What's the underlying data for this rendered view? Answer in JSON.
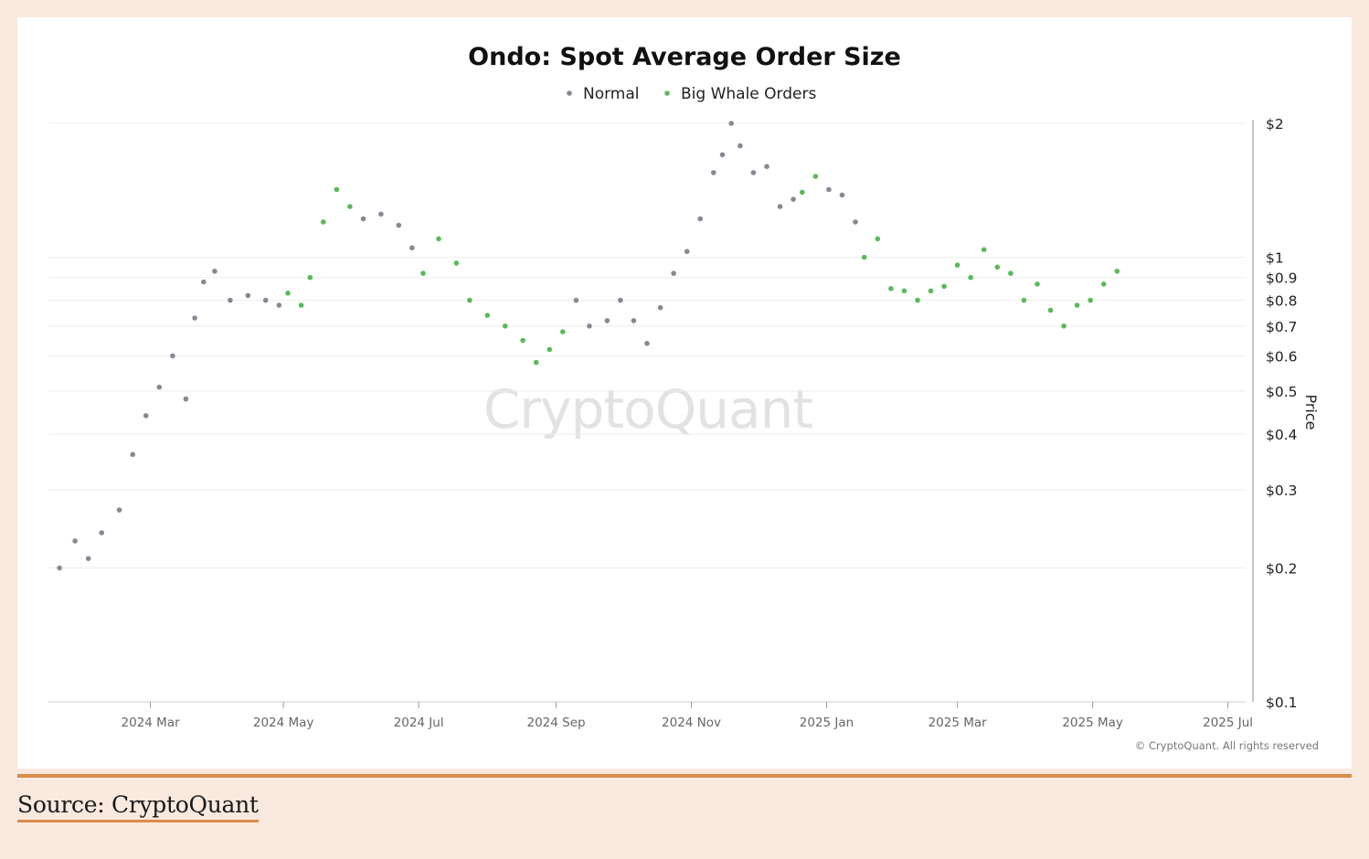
{
  "source": {
    "label": "Source: CryptoQuant"
  },
  "chart_data": {
    "type": "scatter",
    "title": "Ondo: Spot Average Order Size",
    "ylabel": "Price",
    "yscale": "log",
    "ylim": [
      0.1,
      2
    ],
    "watermark": "CryptoQuant",
    "credit": "© CryptoQuant. All rights reserved",
    "colors": {
      "normal": "#8a8794",
      "whale": "#5cb85c"
    },
    "legend": [
      {
        "name": "Normal",
        "key": "normal",
        "color": "#8a8794"
      },
      {
        "name": "Big Whale Orders",
        "key": "whale",
        "color": "#5cb85c"
      }
    ],
    "x_range": [
      0,
      540
    ],
    "x_ticks": [
      {
        "label": "2024 Mar",
        "day": 46
      },
      {
        "label": "2024 May",
        "day": 106
      },
      {
        "label": "2024 Jul",
        "day": 167
      },
      {
        "label": "2024 Sep",
        "day": 229
      },
      {
        "label": "2024 Nov",
        "day": 290
      },
      {
        "label": "2025 Jan",
        "day": 351
      },
      {
        "label": "2025 Mar",
        "day": 410
      },
      {
        "label": "2025 May",
        "day": 471
      },
      {
        "label": "2025 Jul",
        "day": 532
      }
    ],
    "y_ticks": [
      {
        "label": "$2",
        "value": 2
      },
      {
        "label": "$1",
        "value": 1
      },
      {
        "label": "$0.9",
        "value": 0.9
      },
      {
        "label": "$0.8",
        "value": 0.8
      },
      {
        "label": "$0.7",
        "value": 0.7
      },
      {
        "label": "$0.6",
        "value": 0.6
      },
      {
        "label": "$0.5",
        "value": 0.5
      },
      {
        "label": "$0.4",
        "value": 0.4
      },
      {
        "label": "$0.3",
        "value": 0.3
      },
      {
        "label": "$0.2",
        "value": 0.2
      },
      {
        "label": "$0.1",
        "value": 0.1
      }
    ],
    "series": [
      {
        "day": 5,
        "price": 0.2,
        "type": "normal"
      },
      {
        "day": 12,
        "price": 0.23,
        "type": "normal"
      },
      {
        "day": 18,
        "price": 0.21,
        "type": "normal"
      },
      {
        "day": 24,
        "price": 0.24,
        "type": "normal"
      },
      {
        "day": 32,
        "price": 0.27,
        "type": "normal"
      },
      {
        "day": 38,
        "price": 0.36,
        "type": "normal"
      },
      {
        "day": 44,
        "price": 0.44,
        "type": "normal"
      },
      {
        "day": 50,
        "price": 0.51,
        "type": "normal"
      },
      {
        "day": 56,
        "price": 0.6,
        "type": "normal"
      },
      {
        "day": 62,
        "price": 0.48,
        "type": "normal"
      },
      {
        "day": 66,
        "price": 0.73,
        "type": "normal"
      },
      {
        "day": 70,
        "price": 0.88,
        "type": "normal"
      },
      {
        "day": 75,
        "price": 0.93,
        "type": "normal"
      },
      {
        "day": 82,
        "price": 0.8,
        "type": "normal"
      },
      {
        "day": 90,
        "price": 0.82,
        "type": "normal"
      },
      {
        "day": 98,
        "price": 0.8,
        "type": "normal"
      },
      {
        "day": 104,
        "price": 0.78,
        "type": "normal"
      },
      {
        "day": 108,
        "price": 0.83,
        "type": "whale"
      },
      {
        "day": 114,
        "price": 0.78,
        "type": "whale"
      },
      {
        "day": 118,
        "price": 0.9,
        "type": "whale"
      },
      {
        "day": 124,
        "price": 1.2,
        "type": "whale"
      },
      {
        "day": 130,
        "price": 1.42,
        "type": "whale"
      },
      {
        "day": 136,
        "price": 1.3,
        "type": "whale"
      },
      {
        "day": 142,
        "price": 1.22,
        "type": "normal"
      },
      {
        "day": 150,
        "price": 1.25,
        "type": "normal"
      },
      {
        "day": 158,
        "price": 1.18,
        "type": "normal"
      },
      {
        "day": 164,
        "price": 1.05,
        "type": "normal"
      },
      {
        "day": 169,
        "price": 0.92,
        "type": "whale"
      },
      {
        "day": 176,
        "price": 1.1,
        "type": "whale"
      },
      {
        "day": 184,
        "price": 0.97,
        "type": "whale"
      },
      {
        "day": 190,
        "price": 0.8,
        "type": "whale"
      },
      {
        "day": 198,
        "price": 0.74,
        "type": "whale"
      },
      {
        "day": 206,
        "price": 0.7,
        "type": "whale"
      },
      {
        "day": 214,
        "price": 0.65,
        "type": "whale"
      },
      {
        "day": 220,
        "price": 0.58,
        "type": "whale"
      },
      {
        "day": 226,
        "price": 0.62,
        "type": "whale"
      },
      {
        "day": 232,
        "price": 0.68,
        "type": "whale"
      },
      {
        "day": 238,
        "price": 0.8,
        "type": "normal"
      },
      {
        "day": 244,
        "price": 0.7,
        "type": "normal"
      },
      {
        "day": 252,
        "price": 0.72,
        "type": "normal"
      },
      {
        "day": 258,
        "price": 0.8,
        "type": "normal"
      },
      {
        "day": 264,
        "price": 0.72,
        "type": "normal"
      },
      {
        "day": 270,
        "price": 0.64,
        "type": "normal"
      },
      {
        "day": 276,
        "price": 0.77,
        "type": "normal"
      },
      {
        "day": 282,
        "price": 0.92,
        "type": "normal"
      },
      {
        "day": 288,
        "price": 1.03,
        "type": "normal"
      },
      {
        "day": 294,
        "price": 1.22,
        "type": "normal"
      },
      {
        "day": 300,
        "price": 1.55,
        "type": "normal"
      },
      {
        "day": 304,
        "price": 1.7,
        "type": "normal"
      },
      {
        "day": 308,
        "price": 2.0,
        "type": "normal"
      },
      {
        "day": 312,
        "price": 1.78,
        "type": "normal"
      },
      {
        "day": 318,
        "price": 1.55,
        "type": "normal"
      },
      {
        "day": 324,
        "price": 1.6,
        "type": "normal"
      },
      {
        "day": 330,
        "price": 1.3,
        "type": "normal"
      },
      {
        "day": 336,
        "price": 1.35,
        "type": "normal"
      },
      {
        "day": 340,
        "price": 1.4,
        "type": "whale"
      },
      {
        "day": 346,
        "price": 1.52,
        "type": "whale"
      },
      {
        "day": 352,
        "price": 1.42,
        "type": "normal"
      },
      {
        "day": 358,
        "price": 1.38,
        "type": "normal"
      },
      {
        "day": 364,
        "price": 1.2,
        "type": "normal"
      },
      {
        "day": 368,
        "price": 1.0,
        "type": "whale"
      },
      {
        "day": 374,
        "price": 1.1,
        "type": "whale"
      },
      {
        "day": 380,
        "price": 0.85,
        "type": "whale"
      },
      {
        "day": 386,
        "price": 0.84,
        "type": "whale"
      },
      {
        "day": 392,
        "price": 0.8,
        "type": "whale"
      },
      {
        "day": 398,
        "price": 0.84,
        "type": "whale"
      },
      {
        "day": 404,
        "price": 0.86,
        "type": "whale"
      },
      {
        "day": 410,
        "price": 0.96,
        "type": "whale"
      },
      {
        "day": 416,
        "price": 0.9,
        "type": "whale"
      },
      {
        "day": 422,
        "price": 1.04,
        "type": "whale"
      },
      {
        "day": 428,
        "price": 0.95,
        "type": "whale"
      },
      {
        "day": 434,
        "price": 0.92,
        "type": "whale"
      },
      {
        "day": 440,
        "price": 0.8,
        "type": "whale"
      },
      {
        "day": 446,
        "price": 0.87,
        "type": "whale"
      },
      {
        "day": 452,
        "price": 0.76,
        "type": "whale"
      },
      {
        "day": 458,
        "price": 0.7,
        "type": "whale"
      },
      {
        "day": 464,
        "price": 0.78,
        "type": "whale"
      },
      {
        "day": 470,
        "price": 0.8,
        "type": "whale"
      },
      {
        "day": 476,
        "price": 0.87,
        "type": "whale"
      },
      {
        "day": 482,
        "price": 0.93,
        "type": "whale"
      }
    ]
  }
}
